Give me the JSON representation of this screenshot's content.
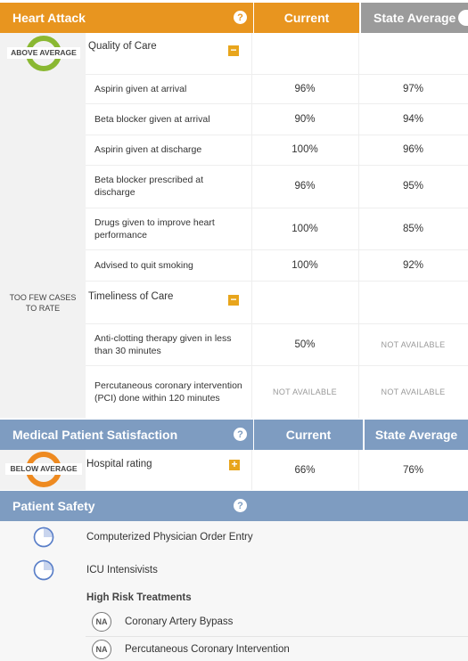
{
  "colors": {
    "orange": "#e8951f",
    "blue": "#7e9cc1",
    "gray_header": "#9b9b9b",
    "light_gray": "#f2f2f2",
    "green_badge": "#8ab832",
    "orange_badge": "#ee8a20",
    "pie_blue": "#5a7fc8"
  },
  "heart_attack": {
    "title": "Heart Attack",
    "help_icon": "?",
    "col_current": "Current",
    "col_state": "State Average",
    "quality": {
      "badge": "ABOVE AVERAGE",
      "section_label": "Quality of Care",
      "toggle": "−",
      "rows": [
        {
          "label": "Aspirin given at arrival",
          "current": "96%",
          "state": "97%"
        },
        {
          "label": "Beta blocker given at arrival",
          "current": "90%",
          "state": "94%"
        },
        {
          "label": "Aspirin given at discharge",
          "current": "100%",
          "state": "96%"
        },
        {
          "label": "Beta blocker prescribed at discharge",
          "current": "96%",
          "state": "95%"
        },
        {
          "label": "Drugs given to improve heart performance",
          "current": "100%",
          "state": "85%"
        },
        {
          "label": "Advised to quit smoking",
          "current": "100%",
          "state": "92%"
        }
      ]
    },
    "timeliness": {
      "badge_line1": "TOO FEW CASES",
      "badge_line2": "TO RATE",
      "section_label": "Timeliness of Care",
      "toggle": "−",
      "rows": [
        {
          "label": "Anti-clotting therapy given in less than 30 minutes",
          "current": "50%",
          "state": "NOT AVAILABLE"
        },
        {
          "label": "Percutaneous coronary intervention (PCI) done within 120 minutes",
          "current": "NOT AVAILABLE",
          "state": "NOT AVAILABLE"
        }
      ]
    }
  },
  "satisfaction": {
    "title": "Medical Patient Satisfaction",
    "help_icon": "?",
    "col_current": "Current",
    "col_state": "State Average",
    "badge": "BELOW AVERAGE",
    "row_label": "Hospital rating",
    "toggle": "+",
    "current": "66%",
    "state": "76%"
  },
  "safety": {
    "title": "Patient Safety",
    "help_icon": "?",
    "items": [
      {
        "label": "Computerized Physician Order Entry",
        "icon": "pie-quarter-icon"
      },
      {
        "label": "ICU Intensivists",
        "icon": "pie-quarter-icon"
      }
    ],
    "high_risk_title": "High Risk Treatments",
    "na_label": "NA",
    "treatments": [
      {
        "label": "Coronary Artery Bypass"
      },
      {
        "label": "Percutaneous Coronary Intervention"
      }
    ]
  }
}
